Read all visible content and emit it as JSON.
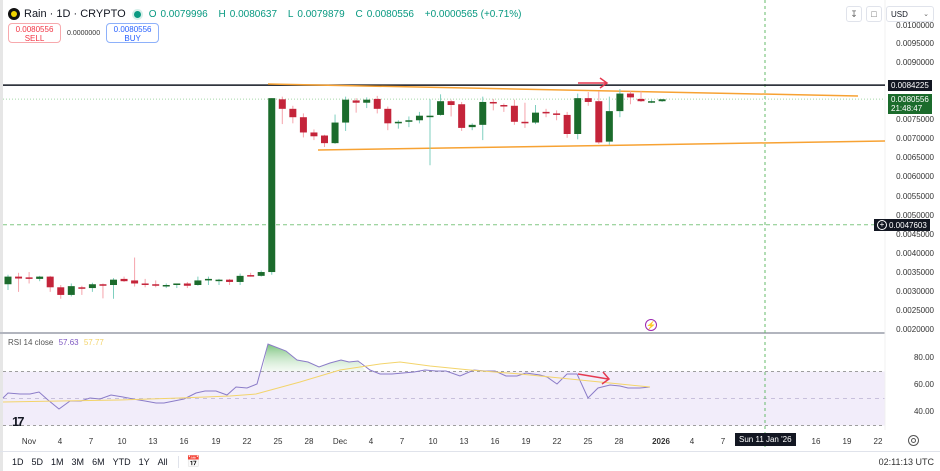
{
  "header": {
    "symbol": "Rain · 1D · CRYPTO",
    "ohlc": {
      "o_label": "O",
      "o": "0.0079996",
      "h_label": "H",
      "h": "0.0080637",
      "l_label": "L",
      "l": "0.0079879",
      "c_label": "C",
      "c": "0.0080556",
      "change": "+0.0000565 (+0.71%)"
    }
  },
  "trade": {
    "sell_price": "0.0080556",
    "sell_label": "SELL",
    "spread": "0.0000000",
    "buy_price": "0.0080556",
    "buy_label": "BUY"
  },
  "toolbar": {
    "download_icon": "download-icon",
    "fullscreen_icon": "fullscreen-icon",
    "currency": "USD"
  },
  "price_axis": {
    "labels": [
      "0.0100000",
      "0.0095000",
      "0.0090000",
      "0.0075000",
      "0.0070000",
      "0.0065000",
      "0.0060000",
      "0.0055000",
      "0.0050000",
      "0.0045000",
      "0.0040000",
      "0.0035000",
      "0.0030000",
      "0.0025000",
      "0.0020000"
    ],
    "resistance_tag": "0.0084225",
    "last_price_tag": "0.0080556",
    "countdown": "21:48:47",
    "alert_tag": "0.0047603"
  },
  "rsi": {
    "label": "RSI 14 close",
    "value": "57.63",
    "ma_value": "57.77",
    "axis": [
      "80.00",
      "60.00",
      "40.00"
    ]
  },
  "time_axis": {
    "labels": [
      "Nov",
      "4",
      "7",
      "10",
      "13",
      "16",
      "19",
      "22",
      "25",
      "28",
      "Dec",
      "4",
      "7",
      "10",
      "13",
      "16",
      "19",
      "22",
      "25",
      "28",
      "2026",
      "4",
      "7",
      "16",
      "19",
      "22"
    ],
    "crosshair_date": "Sun 11 Jan '26"
  },
  "bottom_bar": {
    "ranges": [
      "1D",
      "5D",
      "1M",
      "3M",
      "6M",
      "YTD",
      "1Y",
      "All"
    ],
    "clock": "02:11:13 UTC"
  },
  "colors": {
    "up": "#1b6b2c",
    "down": "#c4243a",
    "trendline": "#f7a233",
    "resistance": "#131722",
    "rsi_line": "#8b7cc8",
    "rsi_ma": "#f3d46b",
    "rsi_band": "#f2edfa",
    "arrow": "#e53950"
  },
  "chart_data": {
    "type": "candlestick",
    "title": "Rain · 1D · CRYPTO",
    "ylabel": "USD",
    "ylim": [
      0.002,
      0.01
    ],
    "candles": [
      {
        "o": 0.0032,
        "h": 0.00345,
        "l": 0.00305,
        "c": 0.0034
      },
      {
        "o": 0.0034,
        "h": 0.0035,
        "l": 0.003,
        "c": 0.00335
      },
      {
        "o": 0.00338,
        "h": 0.00352,
        "l": 0.00322,
        "c": 0.00335
      },
      {
        "o": 0.00334,
        "h": 0.00342,
        "l": 0.00328,
        "c": 0.0034
      },
      {
        "o": 0.0034,
        "h": 0.00342,
        "l": 0.003,
        "c": 0.00312
      },
      {
        "o": 0.00312,
        "h": 0.00318,
        "l": 0.00282,
        "c": 0.00292
      },
      {
        "o": 0.00292,
        "h": 0.00322,
        "l": 0.00288,
        "c": 0.00315
      },
      {
        "o": 0.00312,
        "h": 0.00316,
        "l": 0.00292,
        "c": 0.0031
      },
      {
        "o": 0.0031,
        "h": 0.00324,
        "l": 0.003,
        "c": 0.0032
      },
      {
        "o": 0.0032,
        "h": 0.00322,
        "l": 0.00283,
        "c": 0.00316
      },
      {
        "o": 0.00318,
        "h": 0.00336,
        "l": 0.00282,
        "c": 0.00332
      },
      {
        "o": 0.00334,
        "h": 0.0034,
        "l": 0.00326,
        "c": 0.00328
      },
      {
        "o": 0.0033,
        "h": 0.0039,
        "l": 0.00314,
        "c": 0.00322
      },
      {
        "o": 0.00322,
        "h": 0.00334,
        "l": 0.00312,
        "c": 0.0032
      },
      {
        "o": 0.0032,
        "h": 0.0033,
        "l": 0.00312,
        "c": 0.00316
      },
      {
        "o": 0.00316,
        "h": 0.00322,
        "l": 0.0031,
        "c": 0.00318
      },
      {
        "o": 0.00318,
        "h": 0.00322,
        "l": 0.0031,
        "c": 0.00322
      },
      {
        "o": 0.00322,
        "h": 0.00326,
        "l": 0.0031,
        "c": 0.00316
      },
      {
        "o": 0.00318,
        "h": 0.0034,
        "l": 0.00316,
        "c": 0.0033
      },
      {
        "o": 0.0033,
        "h": 0.0034,
        "l": 0.00318,
        "c": 0.00334
      },
      {
        "o": 0.00332,
        "h": 0.00334,
        "l": 0.00318,
        "c": 0.00332
      },
      {
        "o": 0.00332,
        "h": 0.00334,
        "l": 0.00318,
        "c": 0.00326
      },
      {
        "o": 0.00326,
        "h": 0.00348,
        "l": 0.00318,
        "c": 0.00342
      },
      {
        "o": 0.00344,
        "h": 0.0035,
        "l": 0.0034,
        "c": 0.00342
      },
      {
        "o": 0.00342,
        "h": 0.00356,
        "l": 0.0034,
        "c": 0.00352
      },
      {
        "o": 0.00352,
        "h": 0.00808,
        "l": 0.00345,
        "c": 0.00808
      },
      {
        "o": 0.00805,
        "h": 0.00812,
        "l": 0.0074,
        "c": 0.0078
      },
      {
        "o": 0.0078,
        "h": 0.00788,
        "l": 0.00742,
        "c": 0.00758
      },
      {
        "o": 0.00758,
        "h": 0.00768,
        "l": 0.00705,
        "c": 0.00718
      },
      {
        "o": 0.00718,
        "h": 0.00726,
        "l": 0.00698,
        "c": 0.00708
      },
      {
        "o": 0.0071,
        "h": 0.00712,
        "l": 0.0068,
        "c": 0.0069
      },
      {
        "o": 0.0069,
        "h": 0.00765,
        "l": 0.00688,
        "c": 0.00744
      },
      {
        "o": 0.00744,
        "h": 0.00812,
        "l": 0.00722,
        "c": 0.00804
      },
      {
        "o": 0.00802,
        "h": 0.00808,
        "l": 0.0077,
        "c": 0.00796
      },
      {
        "o": 0.00796,
        "h": 0.0081,
        "l": 0.00782,
        "c": 0.00804
      },
      {
        "o": 0.00806,
        "h": 0.00814,
        "l": 0.00768,
        "c": 0.0078
      },
      {
        "o": 0.0078,
        "h": 0.00786,
        "l": 0.00724,
        "c": 0.00742
      },
      {
        "o": 0.00742,
        "h": 0.0075,
        "l": 0.00728,
        "c": 0.00746
      },
      {
        "o": 0.00746,
        "h": 0.0076,
        "l": 0.00732,
        "c": 0.0075
      },
      {
        "o": 0.0075,
        "h": 0.00772,
        "l": 0.00742,
        "c": 0.00762
      },
      {
        "o": 0.00762,
        "h": 0.00805,
        "l": 0.00632,
        "c": 0.00762
      },
      {
        "o": 0.00764,
        "h": 0.00818,
        "l": 0.00762,
        "c": 0.008
      },
      {
        "o": 0.008,
        "h": 0.00804,
        "l": 0.0076,
        "c": 0.0079
      },
      {
        "o": 0.00792,
        "h": 0.00798,
        "l": 0.00722,
        "c": 0.0073
      },
      {
        "o": 0.00732,
        "h": 0.00742,
        "l": 0.00724,
        "c": 0.00738
      },
      {
        "o": 0.00738,
        "h": 0.00812,
        "l": 0.00698,
        "c": 0.00798
      },
      {
        "o": 0.00798,
        "h": 0.00806,
        "l": 0.00776,
        "c": 0.00794
      },
      {
        "o": 0.0079,
        "h": 0.00794,
        "l": 0.00772,
        "c": 0.00788
      },
      {
        "o": 0.00788,
        "h": 0.00804,
        "l": 0.00738,
        "c": 0.00746
      },
      {
        "o": 0.00746,
        "h": 0.00796,
        "l": 0.0073,
        "c": 0.00742
      },
      {
        "o": 0.00744,
        "h": 0.0079,
        "l": 0.0074,
        "c": 0.0077
      },
      {
        "o": 0.00772,
        "h": 0.0078,
        "l": 0.00758,
        "c": 0.00768
      },
      {
        "o": 0.00768,
        "h": 0.00776,
        "l": 0.0075,
        "c": 0.00764
      },
      {
        "o": 0.00764,
        "h": 0.00772,
        "l": 0.00704,
        "c": 0.00714
      },
      {
        "o": 0.00714,
        "h": 0.0082,
        "l": 0.007,
        "c": 0.00808
      },
      {
        "o": 0.00808,
        "h": 0.00824,
        "l": 0.00788,
        "c": 0.00798
      },
      {
        "o": 0.008,
        "h": 0.00826,
        "l": 0.00688,
        "c": 0.00692
      },
      {
        "o": 0.00694,
        "h": 0.00812,
        "l": 0.00686,
        "c": 0.00774
      },
      {
        "o": 0.00774,
        "h": 0.00832,
        "l": 0.00758,
        "c": 0.0082
      },
      {
        "o": 0.0082,
        "h": 0.00826,
        "l": 0.00792,
        "c": 0.0081
      },
      {
        "o": 0.00806,
        "h": 0.00826,
        "l": 0.00798,
        "c": 0.008
      },
      {
        "o": 0.008,
        "h": 0.00804,
        "l": 0.00795,
        "c": 0.008
      },
      {
        "o": 0.008,
        "h": 0.00806,
        "l": 0.00798,
        "c": 0.00805
      }
    ],
    "annotations": [
      {
        "type": "hline",
        "price": 0.0084225,
        "color": "#131722"
      },
      {
        "type": "hline_dashed",
        "price": 0.0047603,
        "color": "#81c784"
      },
      {
        "type": "trendline_upper",
        "from_price": 0.0084,
        "to_price": 0.0081
      },
      {
        "type": "trendline_lower",
        "from_price": 0.0067,
        "to_price": 0.0069
      },
      {
        "type": "arrow",
        "direction": "right",
        "color": "#e53950"
      }
    ],
    "rsi": {
      "period": 14,
      "levels": [
        70,
        50,
        30
      ],
      "last": 57.63,
      "ma_last": 57.77
    }
  }
}
